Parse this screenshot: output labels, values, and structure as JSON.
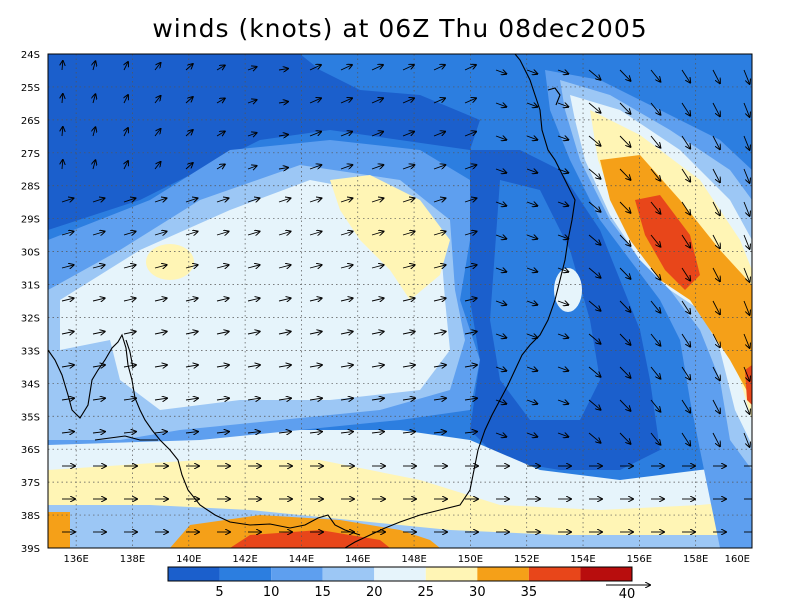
{
  "title": "winds (knots) at 06Z Thu 08dec2005",
  "lat_labels": [
    "24S",
    "25S",
    "26S",
    "27S",
    "28S",
    "29S",
    "30S",
    "31S",
    "32S",
    "33S",
    "34S",
    "35S",
    "36S",
    "37S",
    "38S",
    "39S"
  ],
  "lon_labels": [
    "136E",
    "138E",
    "140E",
    "142E",
    "144E",
    "146E",
    "148E",
    "150E",
    "152E",
    "154E",
    "156E",
    "158E",
    "160E"
  ],
  "colorbar": {
    "colors": [
      "#1b5fcc",
      "#2c7ee0",
      "#5e9fef",
      "#9cc7f5",
      "#e6f4fb",
      "#fff5b5",
      "#f5a018",
      "#e8461a",
      "#b80d0d"
    ],
    "labels": [
      "5",
      "10",
      "15",
      "20",
      "25",
      "30",
      "35",
      "40"
    ],
    "reference_arrow_label": "40"
  },
  "coastline_color": "#000000",
  "arrow_color": "#000000"
}
